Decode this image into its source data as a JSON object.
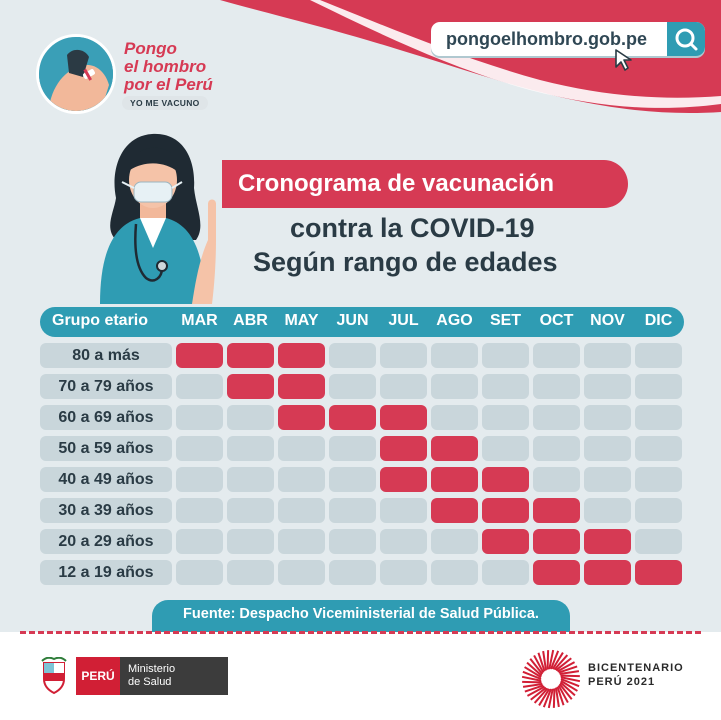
{
  "brand": {
    "campaign_line1": "Pongo",
    "campaign_line2": "el hombro",
    "campaign_line3": "por el Perú",
    "badge": "YO ME VACUNO",
    "url": "pongoelhombro.gob.pe"
  },
  "title": {
    "line1": "Cronograma de vacunación",
    "line2": "contra la COVID-19",
    "line3": "Según rango de edades"
  },
  "table": {
    "group_header": "Grupo etario",
    "months": [
      "MAR",
      "ABR",
      "MAY",
      "JUN",
      "JUL",
      "AGO",
      "SET",
      "OCT",
      "NOV",
      "DIC"
    ],
    "rows": [
      {
        "label": "80 a más",
        "active": [
          1,
          1,
          1,
          0,
          0,
          0,
          0,
          0,
          0,
          0
        ]
      },
      {
        "label": "70 a 79 años",
        "active": [
          0,
          1,
          1,
          0,
          0,
          0,
          0,
          0,
          0,
          0
        ]
      },
      {
        "label": "60 a 69 años",
        "active": [
          0,
          0,
          1,
          1,
          1,
          0,
          0,
          0,
          0,
          0
        ]
      },
      {
        "label": "50 a 59 años",
        "active": [
          0,
          0,
          0,
          0,
          1,
          1,
          0,
          0,
          0,
          0
        ]
      },
      {
        "label": "40 a 49 años",
        "active": [
          0,
          0,
          0,
          0,
          1,
          1,
          1,
          0,
          0,
          0
        ]
      },
      {
        "label": "30 a 39 años",
        "active": [
          0,
          0,
          0,
          0,
          0,
          1,
          1,
          1,
          0,
          0
        ]
      },
      {
        "label": "20 a 29 años",
        "active": [
          0,
          0,
          0,
          0,
          0,
          0,
          1,
          1,
          1,
          0
        ]
      },
      {
        "label": "12 a 19 años",
        "active": [
          0,
          0,
          0,
          0,
          0,
          0,
          0,
          1,
          1,
          1
        ]
      }
    ]
  },
  "source": "Fuente: Despacho Viceministerial de Salud Pública.",
  "footer": {
    "peru": "PERÚ",
    "ministry_line1": "Ministerio",
    "ministry_line2": "de Salud",
    "bicentenario_line1": "BICENTENARIO",
    "bicentenario_line2": "PERÚ 2021"
  },
  "colors": {
    "accent_red": "#d63a54",
    "teal": "#2f9cb3",
    "inactive_cell": "#c9d6db",
    "background": "#e4ebee"
  },
  "icons": [
    "search-icon",
    "cursor-icon",
    "nurse-illustration",
    "peru-shield-icon",
    "bicentenario-icon"
  ]
}
